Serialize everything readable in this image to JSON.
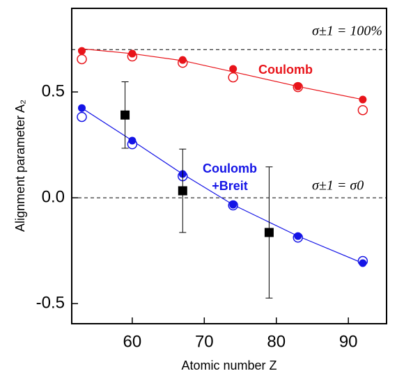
{
  "chart_data": {
    "type": "scatter",
    "xlabel": "Atomic number Z",
    "ylabel": "Alignment parameter A₂",
    "xlim": [
      51.6,
      95.3
    ],
    "ylim": [
      -0.595,
      0.895
    ],
    "xticks": [
      60,
      70,
      80,
      90
    ],
    "yticks": [
      -0.5,
      {
        "value": 0,
        "label": "0.0"
      },
      0.5
    ],
    "hlines": [
      0.7,
      0
    ],
    "hline_labels": [
      "σ±1 = 100%",
      "σ±1 = σ0"
    ],
    "annotations": [
      "Coulomb",
      "Coulomb",
      "+Breit"
    ],
    "annotation_colors": [
      "#e8141a",
      "#1414e6",
      "#1414e6"
    ],
    "series": [
      {
        "color": "#e8141a",
        "marker": "line",
        "x": [
          53,
          60,
          67,
          74,
          83,
          92
        ],
        "values": [
          0.704,
          0.681,
          0.648,
          0.595,
          0.526,
          0.464
        ]
      },
      {
        "color": "#1414e6",
        "marker": "line",
        "x": [
          53,
          60,
          67,
          74,
          83,
          92
        ],
        "values": [
          0.424,
          0.27,
          0.112,
          -0.033,
          -0.181,
          -0.309
        ]
      },
      {
        "color": "#e8141a",
        "marker": "open",
        "x": [
          53,
          60,
          67,
          74,
          83,
          92
        ],
        "values": [
          0.655,
          0.668,
          0.638,
          0.569,
          0.523,
          0.414
        ]
      },
      {
        "color": "#e8141a",
        "marker": "filled",
        "x": [
          53,
          60,
          67,
          74,
          83,
          92
        ],
        "values": [
          0.694,
          0.681,
          0.651,
          0.609,
          0.526,
          0.464
        ]
      },
      {
        "color": "#1414e6",
        "marker": "open",
        "x": [
          53,
          60,
          67,
          74,
          83,
          92
        ],
        "values": [
          0.382,
          0.253,
          0.102,
          -0.036,
          -0.188,
          -0.299
        ]
      },
      {
        "color": "#1414e6",
        "marker": "filled",
        "x": [
          53,
          60,
          67,
          74,
          83,
          92
        ],
        "values": [
          0.424,
          0.27,
          0.112,
          -0.033,
          -0.181,
          -0.309
        ]
      },
      {
        "color": "#000000",
        "marker": "square",
        "x": [
          59,
          67,
          79
        ],
        "values": [
          0.391,
          0.033,
          -0.164
        ],
        "errors": [
          0.157,
          0.197,
          0.31
        ]
      }
    ]
  }
}
